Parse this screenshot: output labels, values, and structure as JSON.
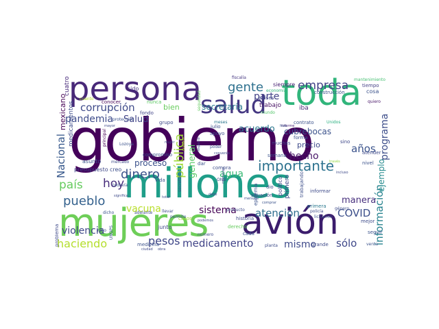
{
  "words": [
    {
      "text": "gobierno",
      "color": "#44015a"
    },
    {
      "text": "millones",
      "color": "#1f9e89"
    },
    {
      "text": "mujeres",
      "color": "#6ece58"
    },
    {
      "text": "avión",
      "color": "#3b1c6c"
    },
    {
      "text": "persona",
      "color": "#482878"
    },
    {
      "text": "toda",
      "color": "#31b57b"
    },
    {
      "text": "salud",
      "color": "#453882"
    },
    {
      "text": "importante",
      "color": "#2c728e"
    },
    {
      "text": "corrupción",
      "color": "#3e4a89"
    },
    {
      "text": "gente",
      "color": "#2d708e"
    },
    {
      "text": "empresa",
      "color": "#424186"
    },
    {
      "text": "pandemia",
      "color": "#3e4c8a"
    },
    {
      "text": "dinero",
      "color": "#3b528b"
    },
    {
      "text": "pueblo",
      "color": "#34618d"
    },
    {
      "text": "país",
      "color": "#65cb5e"
    },
    {
      "text": "hoy",
      "color": "#472d7b"
    },
    {
      "text": "haciendo",
      "color": "#b4de2c"
    },
    {
      "text": "pesos",
      "color": "#3f4788"
    },
    {
      "text": "medicamento",
      "color": "#404387"
    },
    {
      "text": "atención",
      "color": "#2e6e8e"
    },
    {
      "text": "COVID",
      "color": "#3c4f8a"
    },
    {
      "text": "sólo",
      "color": "#3f4889"
    },
    {
      "text": "mismo",
      "color": "#3e4989"
    },
    {
      "text": "años",
      "color": "#3a538b"
    },
    {
      "text": "información",
      "color": "#26828e"
    },
    {
      "text": "ejemplo",
      "color": "#238a8d"
    },
    {
      "text": "programa",
      "color": "#3d4e8a"
    },
    {
      "text": "Nacional",
      "color": "#38598c"
    },
    {
      "text": "pública",
      "color": "#9fda3a"
    },
    {
      "text": "general",
      "color": "#58c765"
    },
    {
      "text": "violencia",
      "color": "#3f4788"
    },
    {
      "text": "sistema",
      "color": "#440154"
    },
    {
      "text": "vacuna",
      "color": "#b8de29"
    },
    {
      "text": "parte",
      "color": "#424186"
    },
    {
      "text": "secretaría",
      "color": "#2a788e"
    },
    {
      "text": "Salud",
      "color": "#414487"
    },
    {
      "text": "hecho",
      "color": "#481668"
    },
    {
      "text": "acuerdo",
      "color": "#2a768e"
    },
    {
      "text": "agua",
      "color": "#3aba76"
    },
    {
      "text": "proceso",
      "color": "#3b518b"
    },
    {
      "text": "manera",
      "color": "#472f7d"
    },
    {
      "text": "cubrebocas",
      "color": "#3b528b"
    },
    {
      "text": "trabajo",
      "color": "#471063"
    },
    {
      "text": "bien",
      "color": "#67cc5c"
    },
    {
      "text": "precio",
      "color": "#3e4a89"
    },
    {
      "text": "mexicano",
      "color": "#440154"
    },
    {
      "text": "medicamentos",
      "color": "#3e4c8a"
    },
    {
      "text": "cuatro",
      "color": "#472a7a"
    },
    {
      "text": "sido",
      "color": "#46337f"
    },
    {
      "text": "cuanto",
      "color": "#b5de2b"
    },
    {
      "text": "conocer",
      "color": "#450457"
    },
    {
      "text": "nunca",
      "color": "#5cc863"
    },
    {
      "text": "seguridad",
      "color": "#63cb5f"
    },
    {
      "text": "fiscalía",
      "color": "#453781"
    },
    {
      "text": "siempre",
      "color": "#482173"
    },
    {
      "text": "construcción",
      "color": "#3b528b"
    },
    {
      "text": "países",
      "color": "#404588"
    },
    {
      "text": "iba",
      "color": "#482677"
    },
    {
      "text": "cosa",
      "color": "#3b528b"
    },
    {
      "text": "tiempo",
      "color": "#433e85"
    },
    {
      "text": "quiero",
      "color": "#481668"
    },
    {
      "text": "mantenimiento",
      "color": "#44bf70"
    },
    {
      "text": "economía",
      "color": "#31b57b"
    },
    {
      "text": "fondo",
      "color": "#414487"
    },
    {
      "text": "compromiso",
      "color": "#3b518b"
    },
    {
      "text": "apoyo",
      "color": "#3d4d8a"
    },
    {
      "text": "julio",
      "color": "#3c4f8a"
    },
    {
      "text": "meses",
      "color": "#2a768e"
    },
    {
      "text": "informe",
      "color": "#482475"
    },
    {
      "text": "mundo",
      "color": "#52c569"
    },
    {
      "text": "contrato",
      "color": "#3b528b"
    },
    {
      "text": "Unidos",
      "color": "#29af7f"
    },
    {
      "text": "forma",
      "color": "#3b528b"
    },
    {
      "text": "muchas",
      "color": "#404588"
    },
    {
      "text": "semana",
      "color": "#3b528b"
    },
    {
      "text": "sino",
      "color": "#3f4889"
    },
    {
      "text": "atender",
      "color": "#3e4a89"
    },
    {
      "text": "nivel",
      "color": "#3b528b"
    },
    {
      "text": "través",
      "color": "#93d741"
    },
    {
      "text": "incluso",
      "color": "#3e4a89"
    },
    {
      "text": "Lozoya",
      "color": "#3b528b"
    },
    {
      "text": "principal",
      "color": "#440154"
    },
    {
      "text": "mayor",
      "color": "#3e4989"
    },
    {
      "text": "asunto",
      "color": "#3b528b"
    },
    {
      "text": "mercado",
      "color": "#3e4c8a"
    },
    {
      "text": "presupuesto",
      "color": "#3f4788"
    },
    {
      "text": "creo",
      "color": "#3d4e8a"
    },
    {
      "text": "vida",
      "color": "#3b528b"
    },
    {
      "text": "dar",
      "color": "#3b528b"
    },
    {
      "text": "ONU",
      "color": "#3e4a89"
    },
    {
      "text": "compra",
      "color": "#3d4d8a"
    },
    {
      "text": "secretario",
      "color": "#3b528b"
    },
    {
      "text": "casos",
      "color": "#a2da37"
    },
    {
      "text": "debe",
      "color": "#3e4a89"
    },
    {
      "text": "situación",
      "color": "#3e4c8a"
    },
    {
      "text": "epidemia",
      "color": "#3b528b"
    },
    {
      "text": "político",
      "color": "#404588"
    },
    {
      "text": "primero",
      "color": "#3f4788"
    },
    {
      "text": "informar",
      "color": "#3e4a89"
    },
    {
      "text": "primera",
      "color": "#2a788e"
    },
    {
      "text": "trabajando",
      "color": "#3d4e8a"
    },
    {
      "text": "derecho",
      "color": "#65cb5e"
    },
    {
      "text": "historia",
      "color": "#3e4989"
    },
    {
      "text": "mejor",
      "color": "#3e4c8a"
    },
    {
      "text": "seguir",
      "color": "#3b528b"
    },
    {
      "text": "grande",
      "color": "#3e4a89"
    },
    {
      "text": "venta",
      "color": "#3b528b"
    },
    {
      "text": "junto",
      "color": "#3e4989"
    },
    {
      "text": "cada",
      "color": "#3b528b"
    },
    {
      "text": "numero",
      "color": "#3e4c8a"
    },
    {
      "text": "UNOPS",
      "color": "#3b528b"
    },
    {
      "text": "niño",
      "color": "#3e4a89"
    },
    {
      "text": "problema",
      "color": "#3e4989"
    },
    {
      "text": "medicina",
      "color": "#3b528b"
    },
    {
      "text": "planta",
      "color": "#3e4c8a"
    },
    {
      "text": "momento",
      "color": "#3e4a89"
    },
    {
      "text": "permite",
      "color": "#3b528b"
    },
    {
      "text": "podemos",
      "color": "#3e4989"
    },
    {
      "text": "policía",
      "color": "#3e4c8a"
    },
    {
      "text": "licitación",
      "color": "#3b528b"
    },
    {
      "text": "obra",
      "color": "#3e4a89"
    },
    {
      "text": "ciudad",
      "color": "#3e4989"
    },
    {
      "text": "dicho",
      "color": "#3b528b"
    },
    {
      "text": "adelante",
      "color": "#3e4c8a"
    },
    {
      "text": "significa",
      "color": "#3e4a89"
    },
    {
      "text": "todavía",
      "color": "#3b528b"
    },
    {
      "text": "grupo",
      "color": "#3e4989"
    },
    {
      "text": "poder",
      "color": "#3b528b"
    },
    {
      "text": "pueden",
      "color": "#b5de2b"
    },
    {
      "text": "respecto",
      "color": "#3e4a89"
    },
    {
      "text": "convenio",
      "color": "#3e4c8a"
    },
    {
      "text": "total",
      "color": "#3b528b"
    },
    {
      "text": "dio",
      "color": "#3e4989"
    },
    {
      "text": "comprar",
      "color": "#3b528b"
    },
    {
      "text": "género",
      "color": "#3e4c8a"
    },
    {
      "text": "hizo",
      "color": "#3b528b"
    },
    {
      "text": "llevar",
      "color": "#3e4a89"
    },
    {
      "text": "protección",
      "color": "#3b528b"
    },
    {
      "text": "mujer",
      "color": "#3e4989"
    },
    {
      "text": "producto",
      "color": "#3e4c8a"
    },
    {
      "text": "mensaje",
      "color": "#3b528b"
    },
    {
      "text": "incluso",
      "color": "#3e4a89"
    }
  ]
}
